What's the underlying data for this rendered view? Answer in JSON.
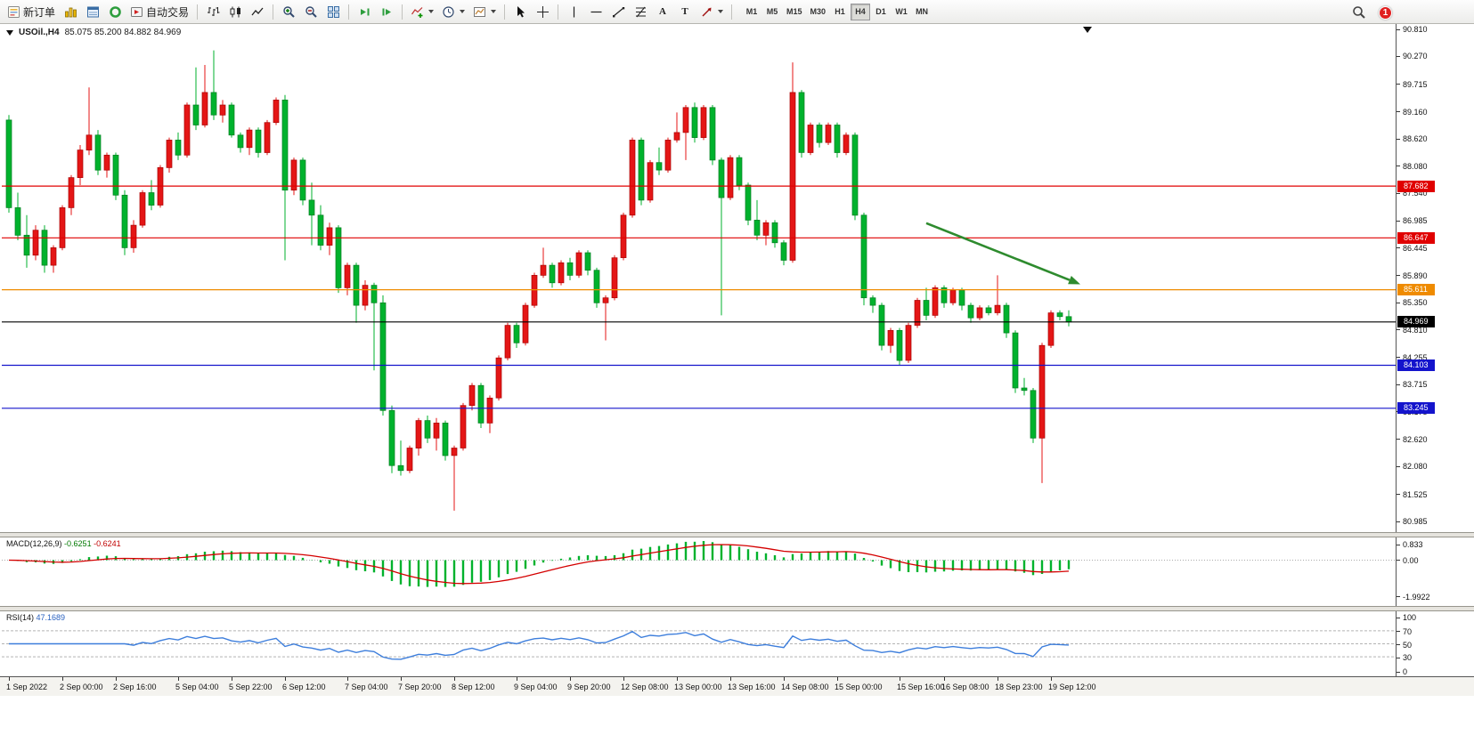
{
  "toolbar": {
    "new_order_label": "新订单",
    "auto_trading_label": "自动交易",
    "text_tool_label": "A",
    "label_tool_label": "T",
    "timeframes": [
      "M1",
      "M5",
      "M15",
      "M30",
      "H1",
      "H4",
      "D1",
      "W1",
      "MN"
    ],
    "active_timeframe": "H4",
    "notification_count": "1"
  },
  "chart": {
    "title_display": "USOil.,H4",
    "ohlc_display": "85.075 85.200 84.882 84.969"
  },
  "macd": {
    "label": "MACD(12,26,9)",
    "value_main": "-0.6251",
    "value_signal": "-0.6241",
    "axis_labels": [
      "0.833",
      "0.00",
      "-1.9922"
    ]
  },
  "rsi": {
    "label": "RSI(14)",
    "value": "47.1689",
    "axis_labels": [
      "100",
      "70",
      "50",
      "30",
      "0"
    ],
    "level_lines": [
      70,
      50,
      30
    ]
  },
  "colors": {
    "up": "#e41616",
    "up_dark": "#a80000",
    "down": "#00b22d",
    "down_dark": "#007d1f",
    "macd_hist": "#00b22d",
    "macd_signal": "#d40000",
    "rsi_line": "#3d7edc",
    "arrow": "#2e8b2e",
    "level_red": "#e00000",
    "level_orange": "#ef8b00",
    "level_blue": "#1414cc",
    "level_black": "#000000"
  },
  "chart_data": {
    "type": "candlestick",
    "symbol": "USOil",
    "timeframe": "H4",
    "current_ohlc": {
      "open": 85.075,
      "high": 85.2,
      "low": 84.882,
      "close": 84.969
    },
    "y_axis": {
      "min": 80.985,
      "max": 90.81,
      "ticks": [
        "90.810",
        "90.270",
        "89.715",
        "89.160",
        "88.620",
        "88.080",
        "87.540",
        "86.985",
        "86.445",
        "85.890",
        "85.350",
        "84.810",
        "84.255",
        "83.715",
        "83.175",
        "82.620",
        "82.080",
        "81.525",
        "80.985"
      ]
    },
    "x_labels": [
      {
        "label": "1 Sep 2022",
        "index": 0
      },
      {
        "label": "2 Sep 00:00",
        "index": 6
      },
      {
        "label": "2 Sep 16:00",
        "index": 12
      },
      {
        "label": "5 Sep 04:00",
        "index": 19
      },
      {
        "label": "5 Sep 22:00",
        "index": 25
      },
      {
        "label": "6 Sep 12:00",
        "index": 31
      },
      {
        "label": "7 Sep 04:00",
        "index": 38
      },
      {
        "label": "7 Sep 20:00",
        "index": 44
      },
      {
        "label": "8 Sep 12:00",
        "index": 50
      },
      {
        "label": "9 Sep 04:00",
        "index": 57
      },
      {
        "label": "9 Sep 20:00",
        "index": 63
      },
      {
        "label": "12 Sep 08:00",
        "index": 69
      },
      {
        "label": "13 Sep 00:00",
        "index": 75
      },
      {
        "label": "13 Sep 16:00",
        "index": 81
      },
      {
        "label": "14 Sep 08:00",
        "index": 87
      },
      {
        "label": "15 Sep 00:00",
        "index": 93
      },
      {
        "label": "15 Sep 16:00",
        "index": 100
      },
      {
        "label": "16 Sep 08:00",
        "index": 105
      },
      {
        "label": "18 Sep 23:00",
        "index": 111
      },
      {
        "label": "19 Sep 12:00",
        "index": 117
      }
    ],
    "horizontal_levels": [
      {
        "price": 87.682,
        "label": "87.682",
        "color_key": "level_red"
      },
      {
        "price": 86.647,
        "label": "86.647",
        "color_key": "level_red"
      },
      {
        "price": 85.611,
        "label": "85.611",
        "color_key": "level_orange"
      },
      {
        "price": 84.969,
        "label": "84.969",
        "color_key": "level_black"
      },
      {
        "price": 84.103,
        "label": "84.103",
        "color_key": "level_blue"
      },
      {
        "price": 83.245,
        "label": "83.245",
        "color_key": "level_blue"
      }
    ],
    "trend_arrow": {
      "from_index": 103,
      "from_price": 86.94,
      "to_index": 120.3,
      "to_price": 85.72
    },
    "candles": [
      [
        89.0,
        89.1,
        87.15,
        87.25
      ],
      [
        87.25,
        87.55,
        86.6,
        86.7
      ],
      [
        86.7,
        87.1,
        86.05,
        86.3
      ],
      [
        86.3,
        86.9,
        86.2,
        86.8
      ],
      [
        86.8,
        86.9,
        85.95,
        86.1
      ],
      [
        86.1,
        86.5,
        85.95,
        86.45
      ],
      [
        86.45,
        87.3,
        86.4,
        87.25
      ],
      [
        87.25,
        87.9,
        87.1,
        87.85
      ],
      [
        87.85,
        88.5,
        87.7,
        88.4
      ],
      [
        88.4,
        89.65,
        88.3,
        88.7
      ],
      [
        88.7,
        88.8,
        87.9,
        88.0
      ],
      [
        88.0,
        88.35,
        87.85,
        88.3
      ],
      [
        88.3,
        88.35,
        87.4,
        87.5
      ],
      [
        87.5,
        87.6,
        86.3,
        86.45
      ],
      [
        86.45,
        87.0,
        86.35,
        86.9
      ],
      [
        86.9,
        87.6,
        86.85,
        87.55
      ],
      [
        87.55,
        87.8,
        87.2,
        87.3
      ],
      [
        87.3,
        88.1,
        87.25,
        88.05
      ],
      [
        88.05,
        88.65,
        87.95,
        88.6
      ],
      [
        88.6,
        88.75,
        88.2,
        88.3
      ],
      [
        88.3,
        89.35,
        88.25,
        89.3
      ],
      [
        89.3,
        90.05,
        88.8,
        88.9
      ],
      [
        88.9,
        90.1,
        88.85,
        89.55
      ],
      [
        89.55,
        90.39,
        89.0,
        89.1
      ],
      [
        89.1,
        89.4,
        88.95,
        89.3
      ],
      [
        89.3,
        89.35,
        88.65,
        88.7
      ],
      [
        88.7,
        88.75,
        88.35,
        88.45
      ],
      [
        88.45,
        88.85,
        88.3,
        88.8
      ],
      [
        88.8,
        88.85,
        88.25,
        88.35
      ],
      [
        88.35,
        89.0,
        88.3,
        88.95
      ],
      [
        88.95,
        89.45,
        88.9,
        89.4
      ],
      [
        89.4,
        89.5,
        86.2,
        87.6
      ],
      [
        87.6,
        88.25,
        87.5,
        88.2
      ],
      [
        88.2,
        88.25,
        87.3,
        87.4
      ],
      [
        87.4,
        87.75,
        86.5,
        87.1
      ],
      [
        87.1,
        87.3,
        86.4,
        86.5
      ],
      [
        86.5,
        86.95,
        86.3,
        86.85
      ],
      [
        86.85,
        86.9,
        85.55,
        85.65
      ],
      [
        85.65,
        86.15,
        85.5,
        86.1
      ],
      [
        86.1,
        86.15,
        84.95,
        85.3
      ],
      [
        85.3,
        85.8,
        85.2,
        85.7
      ],
      [
        85.7,
        85.75,
        84.0,
        85.35
      ],
      [
        85.35,
        85.5,
        83.1,
        83.2
      ],
      [
        83.2,
        83.3,
        81.95,
        82.1
      ],
      [
        82.1,
        82.6,
        81.9,
        82.0
      ],
      [
        82.0,
        82.5,
        81.95,
        82.45
      ],
      [
        82.45,
        83.05,
        82.3,
        83.0
      ],
      [
        83.0,
        83.1,
        82.55,
        82.65
      ],
      [
        82.65,
        83.05,
        82.4,
        82.95
      ],
      [
        82.95,
        83.0,
        82.2,
        82.3
      ],
      [
        82.3,
        82.5,
        81.2,
        82.45
      ],
      [
        82.45,
        83.35,
        82.4,
        83.3
      ],
      [
        83.3,
        83.75,
        83.2,
        83.7
      ],
      [
        83.7,
        83.75,
        82.85,
        82.95
      ],
      [
        82.95,
        83.5,
        82.75,
        83.45
      ],
      [
        83.45,
        84.3,
        83.4,
        84.25
      ],
      [
        84.25,
        84.95,
        84.2,
        84.9
      ],
      [
        84.9,
        84.95,
        84.45,
        84.55
      ],
      [
        84.55,
        85.35,
        84.5,
        85.3
      ],
      [
        85.3,
        85.95,
        85.25,
        85.9
      ],
      [
        85.9,
        86.45,
        85.85,
        86.1
      ],
      [
        86.1,
        86.15,
        85.65,
        85.75
      ],
      [
        85.75,
        86.2,
        85.7,
        86.15
      ],
      [
        86.15,
        86.25,
        85.8,
        85.9
      ],
      [
        85.9,
        86.4,
        85.85,
        86.35
      ],
      [
        86.35,
        86.4,
        85.9,
        86.0
      ],
      [
        86.0,
        86.05,
        85.25,
        85.35
      ],
      [
        85.35,
        85.5,
        84.6,
        85.45
      ],
      [
        85.45,
        86.3,
        85.4,
        86.25
      ],
      [
        86.25,
        87.15,
        86.2,
        87.1
      ],
      [
        87.1,
        88.65,
        87.05,
        88.6
      ],
      [
        88.6,
        88.65,
        87.3,
        87.4
      ],
      [
        87.4,
        88.2,
        87.35,
        88.15
      ],
      [
        88.15,
        88.45,
        87.9,
        88.0
      ],
      [
        88.0,
        88.65,
        87.95,
        88.6
      ],
      [
        88.6,
        89.15,
        88.55,
        88.75
      ],
      [
        88.75,
        89.3,
        88.2,
        89.25
      ],
      [
        89.25,
        89.35,
        88.55,
        88.65
      ],
      [
        88.65,
        89.3,
        88.6,
        89.25
      ],
      [
        89.25,
        89.3,
        88.1,
        88.2
      ],
      [
        88.2,
        88.25,
        85.1,
        87.45
      ],
      [
        87.45,
        88.3,
        87.4,
        88.25
      ],
      [
        88.25,
        88.3,
        87.6,
        87.7
      ],
      [
        87.7,
        87.75,
        86.9,
        87.0
      ],
      [
        87.0,
        87.4,
        86.6,
        86.7
      ],
      [
        86.7,
        87.0,
        86.5,
        86.95
      ],
      [
        86.95,
        87.0,
        86.45,
        86.55
      ],
      [
        86.55,
        86.6,
        86.1,
        86.2
      ],
      [
        86.2,
        90.15,
        86.15,
        89.55
      ],
      [
        89.55,
        89.6,
        88.25,
        88.35
      ],
      [
        88.35,
        88.95,
        88.3,
        88.9
      ],
      [
        88.9,
        88.95,
        88.45,
        88.55
      ],
      [
        88.55,
        88.95,
        88.5,
        88.9
      ],
      [
        88.9,
        88.95,
        88.25,
        88.35
      ],
      [
        88.35,
        88.75,
        88.3,
        88.7
      ],
      [
        88.7,
        88.75,
        87.0,
        87.1
      ],
      [
        87.1,
        87.15,
        85.3,
        85.45
      ],
      [
        85.45,
        85.5,
        85.15,
        85.3
      ],
      [
        85.3,
        85.35,
        84.4,
        84.5
      ],
      [
        84.5,
        84.85,
        84.35,
        84.8
      ],
      [
        84.8,
        84.85,
        84.1,
        84.2
      ],
      [
        84.2,
        84.95,
        84.15,
        84.9
      ],
      [
        84.9,
        85.45,
        84.85,
        85.4
      ],
      [
        85.4,
        85.65,
        85.0,
        85.1
      ],
      [
        85.1,
        85.7,
        85.05,
        85.65
      ],
      [
        85.65,
        85.7,
        85.25,
        85.35
      ],
      [
        85.35,
        85.65,
        85.3,
        85.6
      ],
      [
        85.6,
        85.65,
        85.2,
        85.3
      ],
      [
        85.3,
        85.35,
        84.95,
        85.05
      ],
      [
        85.05,
        85.3,
        85.0,
        85.25
      ],
      [
        85.25,
        85.3,
        85.1,
        85.15
      ],
      [
        85.15,
        85.9,
        85.1,
        85.3
      ],
      [
        85.3,
        85.35,
        84.65,
        84.75
      ],
      [
        84.75,
        84.8,
        83.55,
        83.65
      ],
      [
        83.65,
        83.85,
        83.5,
        83.6
      ],
      [
        83.6,
        83.65,
        82.55,
        82.65
      ],
      [
        82.65,
        84.55,
        81.75,
        84.5
      ],
      [
        84.5,
        85.2,
        84.45,
        85.15
      ],
      [
        85.15,
        85.2,
        85.0,
        85.075
      ],
      [
        85.075,
        85.2,
        84.882,
        84.969
      ]
    ],
    "indicators": [
      {
        "name": "MACD",
        "params": [
          12,
          26,
          9
        ],
        "current": [
          -0.6251,
          -0.6241
        ]
      },
      {
        "name": "RSI",
        "params": [
          14
        ],
        "current": 47.1689
      }
    ]
  }
}
